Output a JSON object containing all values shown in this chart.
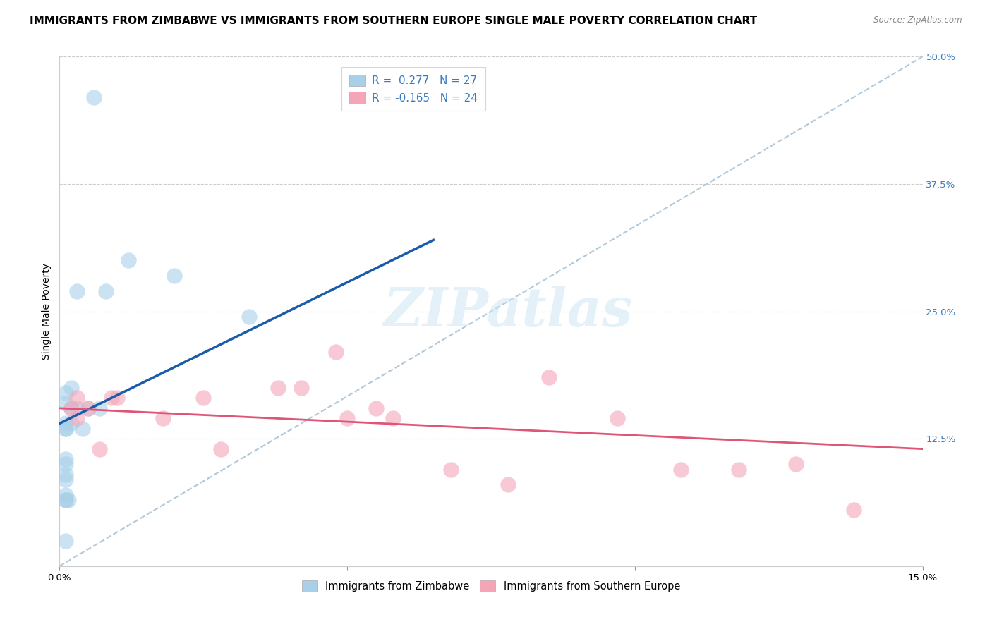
{
  "title": "IMMIGRANTS FROM ZIMBABWE VS IMMIGRANTS FROM SOUTHERN EUROPE SINGLE MALE POVERTY CORRELATION CHART",
  "source": "Source: ZipAtlas.com",
  "ylabel": "Single Male Poverty",
  "xlim": [
    0.0,
    0.15
  ],
  "ylim": [
    0.0,
    0.5
  ],
  "xtick_vals": [
    0.0,
    0.05,
    0.1,
    0.15
  ],
  "xtick_labels": [
    "0.0%",
    "",
    "",
    "15.0%"
  ],
  "yticks_right": [
    0.0,
    0.125,
    0.25,
    0.375,
    0.5
  ],
  "ytick_labels_right": [
    "",
    "12.5%",
    "25.0%",
    "37.5%",
    "50.0%"
  ],
  "blue_R": 0.277,
  "blue_N": 27,
  "pink_R": -0.165,
  "pink_N": 24,
  "blue_color": "#a8d0e8",
  "pink_color": "#f4a6b8",
  "blue_line_color": "#1a5ca8",
  "pink_line_color": "#e05577",
  "watermark_text": "ZIPatlas",
  "blue_scatter_x": [
    0.006,
    0.012,
    0.02,
    0.008,
    0.003,
    0.002,
    0.001,
    0.001,
    0.003,
    0.005,
    0.002,
    0.007,
    0.001,
    0.002,
    0.001,
    0.001,
    0.004,
    0.033,
    0.001,
    0.001,
    0.001,
    0.001,
    0.001,
    0.001,
    0.001,
    0.0015,
    0.001
  ],
  "blue_scatter_y": [
    0.46,
    0.3,
    0.285,
    0.27,
    0.27,
    0.175,
    0.17,
    0.16,
    0.155,
    0.155,
    0.155,
    0.155,
    0.14,
    0.14,
    0.135,
    0.135,
    0.135,
    0.245,
    0.105,
    0.1,
    0.09,
    0.085,
    0.07,
    0.065,
    0.065,
    0.065,
    0.025
  ],
  "pink_scatter_x": [
    0.003,
    0.01,
    0.018,
    0.025,
    0.028,
    0.038,
    0.05,
    0.058,
    0.068,
    0.078,
    0.097,
    0.108,
    0.118,
    0.128,
    0.002,
    0.003,
    0.005,
    0.007,
    0.009,
    0.042,
    0.048,
    0.055,
    0.085,
    0.138
  ],
  "pink_scatter_y": [
    0.145,
    0.165,
    0.145,
    0.165,
    0.115,
    0.175,
    0.145,
    0.145,
    0.095,
    0.08,
    0.145,
    0.095,
    0.095,
    0.1,
    0.155,
    0.165,
    0.155,
    0.115,
    0.165,
    0.175,
    0.21,
    0.155,
    0.185,
    0.055
  ],
  "legend_items": [
    "Immigrants from Zimbabwe",
    "Immigrants from Southern Europe"
  ],
  "title_fontsize": 11,
  "axis_label_fontsize": 10,
  "tick_fontsize": 9.5,
  "legend_fontsize": 11,
  "blue_line_x": [
    0.0,
    0.065
  ],
  "blue_line_y": [
    0.14,
    0.32
  ],
  "pink_line_x": [
    0.0,
    0.15
  ],
  "pink_line_y": [
    0.155,
    0.115
  ],
  "ref_line_x": [
    0.0,
    0.15
  ],
  "ref_line_y": [
    0.0,
    0.5
  ]
}
